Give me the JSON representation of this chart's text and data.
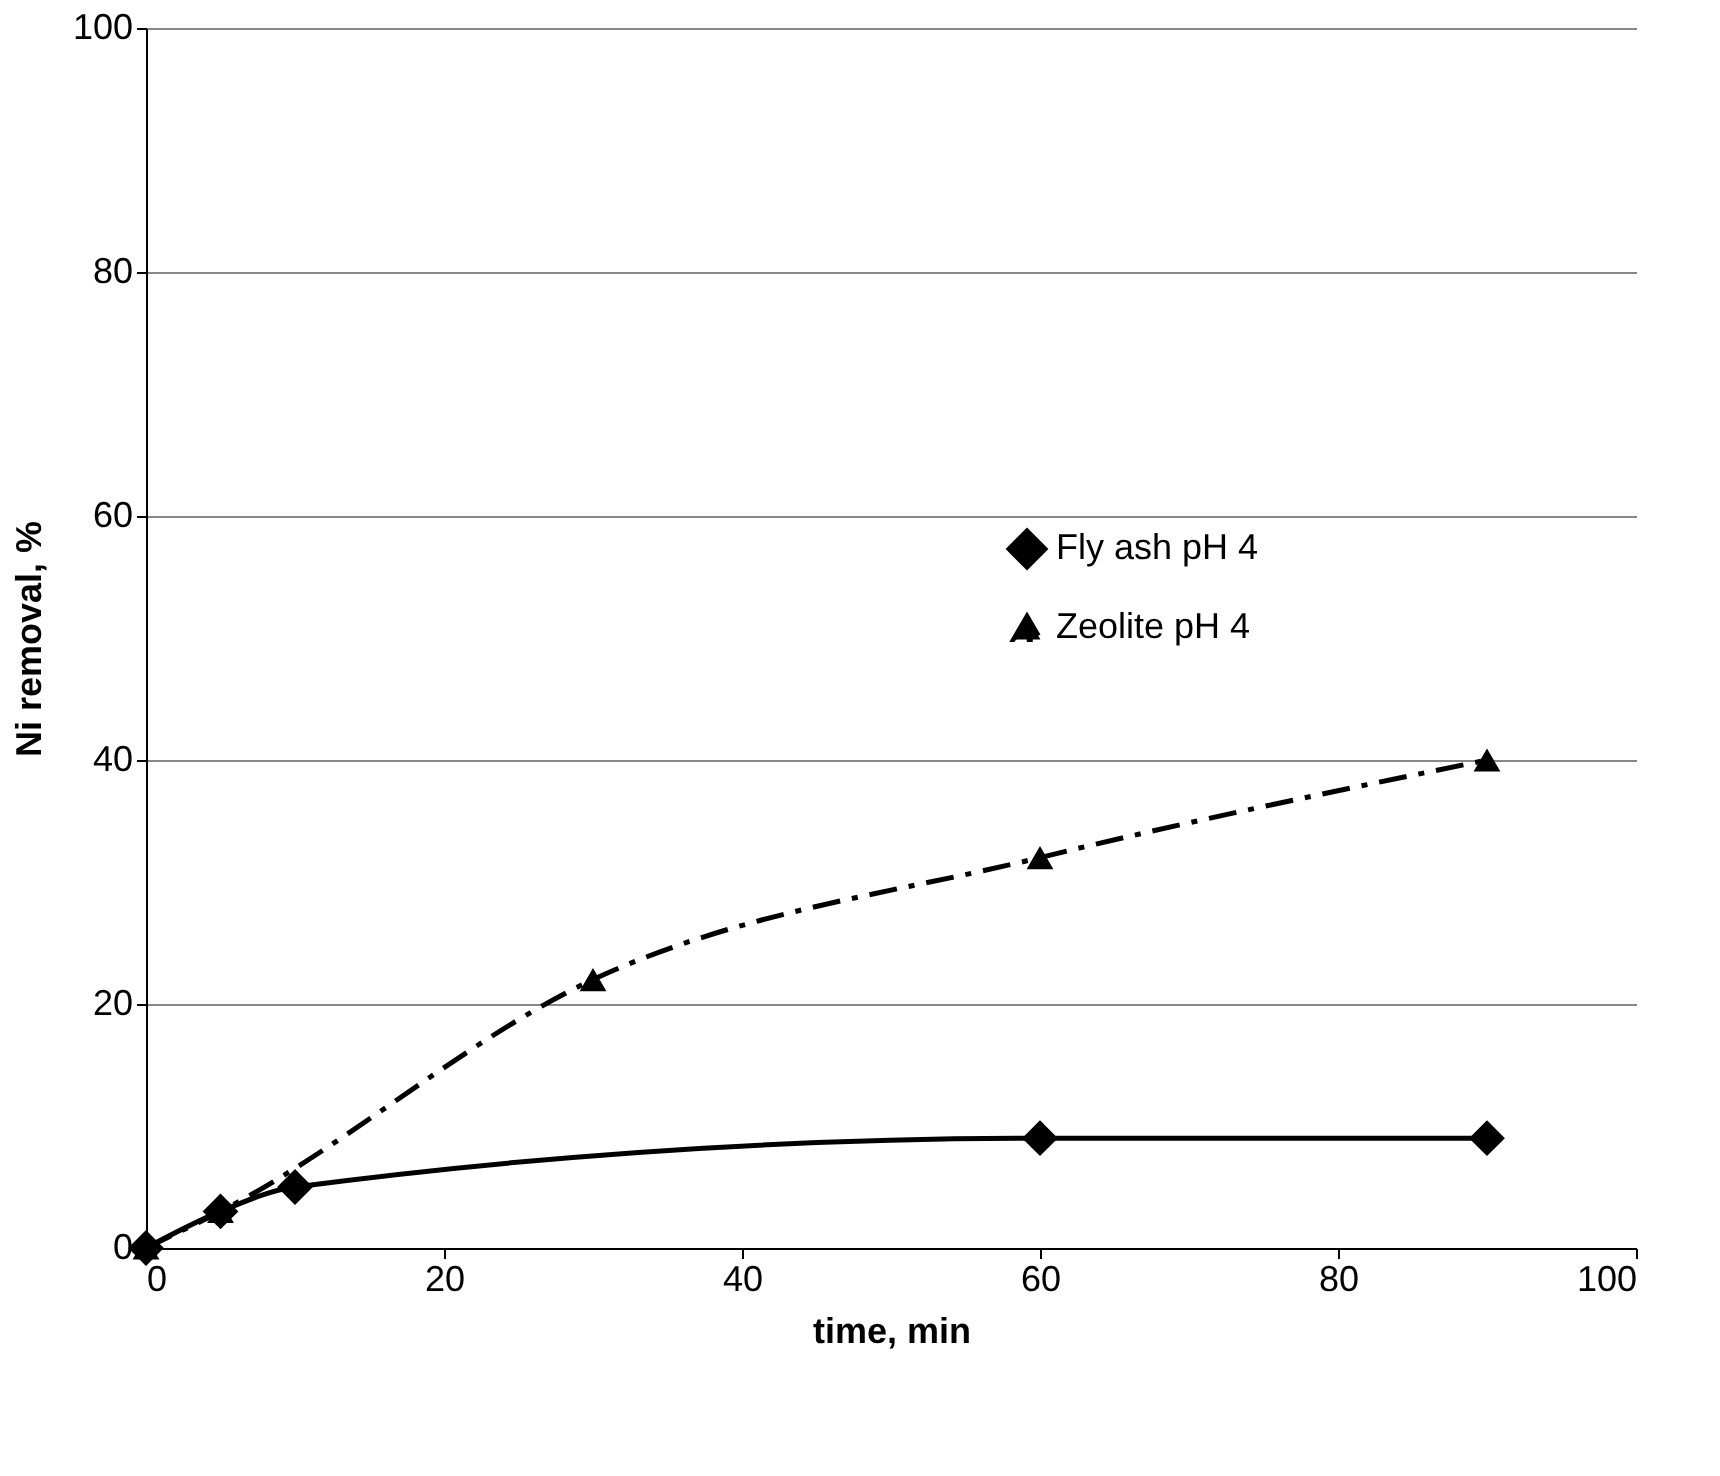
{
  "chart_data": {
    "type": "line",
    "xlabel": "time, min",
    "ylabel": "Ni removal, %",
    "xlim": [
      0,
      100
    ],
    "xticks": [
      0,
      20,
      40,
      60,
      80,
      100
    ],
    "ylim": [
      0,
      100
    ],
    "yticks": [
      0,
      20,
      40,
      60,
      80,
      100
    ],
    "grid": "y",
    "legend": "right",
    "series": [
      {
        "name": "Fly ash pH 4",
        "color": "#000000",
        "marker": "diamond",
        "line_style": "solid",
        "x": [
          0,
          5,
          10,
          60,
          90
        ],
        "values": [
          0,
          3,
          5,
          9,
          9
        ]
      },
      {
        "name": "Zeolite pH 4",
        "color": "#000000",
        "marker": "triangle",
        "line_style": "dashed",
        "x": [
          0,
          5,
          30,
          60,
          90
        ],
        "values": [
          0,
          3,
          22,
          32,
          40
        ]
      }
    ]
  }
}
